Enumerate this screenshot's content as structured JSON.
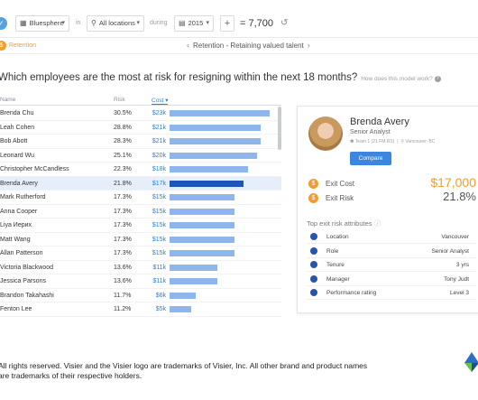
{
  "toolbar": {
    "dataset": "Bluesphere",
    "in_label": "in",
    "location": "All locations",
    "during_label": "during",
    "year": "2015",
    "plus": "+",
    "count": "= 7,700",
    "undo": "↺"
  },
  "subheader": {
    "section": "Retention",
    "title": "Retention - Retaining valued talent",
    "prev": "‹",
    "next": "›"
  },
  "question": {
    "text": "Which employees are the most at risk for resigning within the next 18 months?",
    "help": "How does this model work?",
    "help_icon": "?"
  },
  "table": {
    "headers": {
      "name": "Name",
      "risk": "Risk",
      "cost": "Cost"
    },
    "rows": [
      {
        "name": "Brenda Chu",
        "risk": "30.5%",
        "cost": "$23k",
        "cost_value": 23
      },
      {
        "name": "Leah Cohen",
        "risk": "28.8%",
        "cost": "$21k",
        "cost_value": 21
      },
      {
        "name": "Bob Abott",
        "risk": "28.3%",
        "cost": "$21k",
        "cost_value": 21
      },
      {
        "name": "Leonard Wu",
        "risk": "25.1%",
        "cost": "$20k",
        "cost_value": 20
      },
      {
        "name": "Christopher McCandless",
        "risk": "22.3%",
        "cost": "$18k",
        "cost_value": 18
      },
      {
        "name": "Brenda Avery",
        "risk": "21.8%",
        "cost": "$17k",
        "cost_value": 17,
        "selected": true
      },
      {
        "name": "Mark Rutherford",
        "risk": "17.3%",
        "cost": "$15k",
        "cost_value": 15
      },
      {
        "name": "Anna Cooper",
        "risk": "17.3%",
        "cost": "$15k",
        "cost_value": 15
      },
      {
        "name": "Liya Иерих",
        "risk": "17.3%",
        "cost": "$15k",
        "cost_value": 15
      },
      {
        "name": "Matt Wang",
        "risk": "17.3%",
        "cost": "$15k",
        "cost_value": 15
      },
      {
        "name": "Allan Patterson",
        "risk": "17.3%",
        "cost": "$15k",
        "cost_value": 15
      },
      {
        "name": "Victoria Blackwood",
        "risk": "13.6%",
        "cost": "$11k",
        "cost_value": 11
      },
      {
        "name": "Jessica Parsons",
        "risk": "13.6%",
        "cost": "$11k",
        "cost_value": 11
      },
      {
        "name": "Brandon Takahashi",
        "risk": "11.7%",
        "cost": "$6k",
        "cost_value": 6
      },
      {
        "name": "Fenton Lee",
        "risk": "11.2%",
        "cost": "$5k",
        "cost_value": 5
      }
    ]
  },
  "profile": {
    "name": "Brenda Avery",
    "title": "Senior Analyst",
    "team": "Team 1 (21 FM RS)",
    "location": "Vancouver, BC",
    "compare_label": "Compare",
    "exit_cost_label": "Exit Cost",
    "exit_cost_value": "$17,000",
    "exit_risk_label": "Exit Risk",
    "exit_risk_value": "21.8%",
    "attributes_title": "Top exit risk attributes",
    "attributes": [
      {
        "label": "Location",
        "value": "Vancouver"
      },
      {
        "label": "Role",
        "value": "Senior Analyst"
      },
      {
        "label": "Tenure",
        "value": "3 yrs"
      },
      {
        "label": "Manager",
        "value": "Tony Judt"
      },
      {
        "label": "Performance rating",
        "value": "Level 3"
      }
    ]
  },
  "footer": {
    "line1": "All rights reserved. Visier and the Visier logo are trademarks of Visier, Inc. All other brand and product names",
    "line2": "are trademarks of their respective holders."
  },
  "colors": {
    "accent": "#f39c2c",
    "link": "#2f7fd3",
    "bar": "#8fb6ec",
    "bar_selected": "#1f55b8",
    "button": "#3d86e0"
  }
}
